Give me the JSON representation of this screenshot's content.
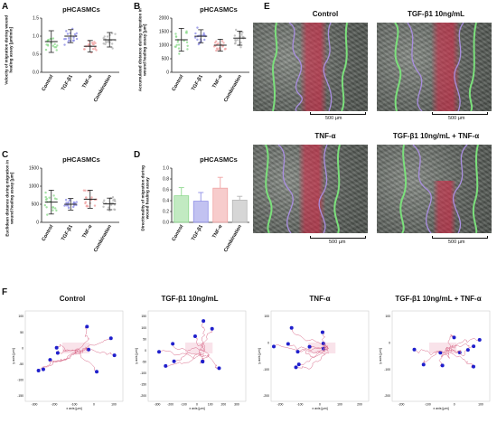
{
  "panels": {
    "A": {
      "letter": "A",
      "title": "pHCASMCs",
      "ylabel": "Velocity of migration during wound healing assay [µm/min]"
    },
    "B": {
      "letter": "B",
      "title": "pHCASMCs",
      "ylabel": "Accumulated distance during migration in wound healing assay [µm]"
    },
    "C": {
      "letter": "C",
      "title": "pHCASMCs",
      "ylabel": "Euclidean distance during migration in wound healing assay [µm]"
    },
    "D": {
      "letter": "D",
      "title": "pHCASMCs",
      "ylabel": "Directionality of migration during wound healing assay"
    },
    "E": {
      "letter": "E"
    },
    "F": {
      "letter": "F"
    }
  },
  "categories": [
    "Control",
    "TGF-β1",
    "TNF-α",
    "Combination"
  ],
  "colors": {
    "control": "#8fd98f",
    "tgf": "#8f8fe6",
    "tnf": "#f0a3a3",
    "combo": "#b5b5b5",
    "gap_red": "#d62846",
    "front_green": "#7be07b",
    "path_purple": "#a98ee0",
    "dot_blue": "#1f1fcc",
    "track_pink": "#d96b8a"
  },
  "chart_data": [
    {
      "type": "scatter",
      "panel": "A",
      "categories": [
        "Control",
        "TGF-β1",
        "TNF-α",
        "Combination"
      ],
      "yticks": [
        "0.0",
        "0.5",
        "1.0",
        "1.5"
      ],
      "ylim": [
        0,
        1.5
      ],
      "means": [
        0.85,
        1.0,
        0.72,
        0.9
      ],
      "sd": [
        0.3,
        0.18,
        0.16,
        0.2
      ]
    },
    {
      "type": "scatter",
      "panel": "B",
      "categories": [
        "Control",
        "TGF-β1",
        "TNF-α",
        "Combination"
      ],
      "yticks": [
        "0",
        "500",
        "1000",
        "1500",
        "2000"
      ],
      "ylim": [
        0,
        2000
      ],
      "means": [
        1200,
        1330,
        1000,
        1260
      ],
      "sd": [
        420,
        240,
        220,
        260
      ]
    },
    {
      "type": "scatter",
      "panel": "C",
      "categories": [
        "Control",
        "TGF-β1",
        "TNF-α",
        "Combination"
      ],
      "yticks": [
        "0",
        "500",
        "1000",
        "1500"
      ],
      "ylim": [
        0,
        1500
      ],
      "means": [
        560,
        500,
        640,
        510
      ],
      "sd": [
        330,
        160,
        250,
        160
      ]
    },
    {
      "type": "bar",
      "panel": "D",
      "categories": [
        "Control",
        "TGF-β1",
        "TNF-α",
        "Combination"
      ],
      "yticks": [
        "0.0",
        "0.2",
        "0.4",
        "0.6",
        "0.8",
        "1.0"
      ],
      "ylim": [
        0,
        1.0
      ],
      "values": [
        0.49,
        0.39,
        0.63,
        0.41
      ],
      "sd": [
        0.15,
        0.16,
        0.2,
        0.07
      ]
    }
  ],
  "micrographs": [
    {
      "title": "Control",
      "scale": "500 µm"
    },
    {
      "title": "TGF-β1 10ng/mL",
      "scale": "500 µm"
    },
    {
      "title": "TNF-α",
      "scale": "500 µm"
    },
    {
      "title": "TGF-β1 10ng/mL + TNF-α",
      "scale": "500 µm"
    }
  ],
  "tracks": [
    {
      "title": "Control",
      "yticks": [
        "100",
        "50",
        "0",
        "-50",
        "-100",
        "-150"
      ],
      "xticks": [
        "-300",
        "-200",
        "-100",
        "0",
        "100"
      ],
      "xlabel": "x axis [µm]",
      "ylabel": "y axis [µm]"
    },
    {
      "title": "TGF-β1 10ng/mL",
      "yticks": [
        "150",
        "100",
        "50",
        "0",
        "-50",
        "-100",
        "-150",
        "-200"
      ],
      "xticks": [
        "-300",
        "-200",
        "-100",
        "0",
        "100",
        "200",
        "300"
      ],
      "xlabel": "x axis [µm]",
      "ylabel": "y axis [µm]"
    },
    {
      "title": "TNF-α",
      "yticks": [
        "100",
        "0",
        "-100",
        "-200"
      ],
      "xticks": [
        "-200",
        "-100",
        "0",
        "100",
        "200"
      ],
      "xlabel": "x axis [µm]",
      "ylabel": "y axis [µm]"
    },
    {
      "title": "TGF-β1 10ng/mL + TNF-α",
      "yticks": [
        "100",
        "0",
        "-100",
        "-200"
      ],
      "xticks": [
        "-200",
        "-100",
        "0",
        "100"
      ],
      "xlabel": "x axis [µm]",
      "ylabel": "y axis [µm]"
    }
  ]
}
